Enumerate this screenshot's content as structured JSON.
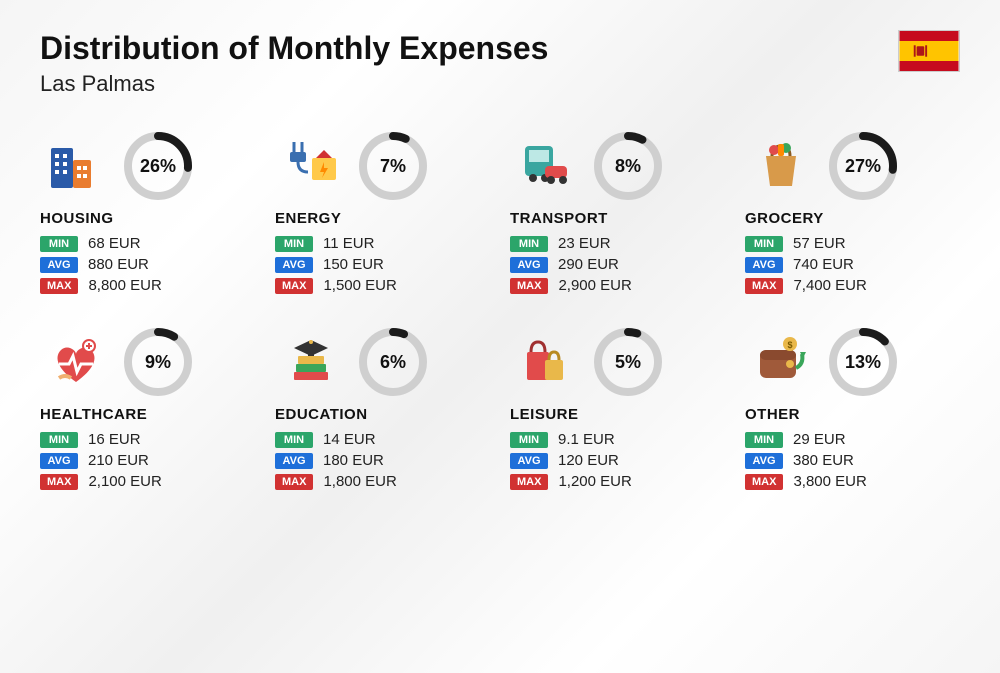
{
  "title": "Distribution of Monthly Expenses",
  "subtitle": "Las Palmas",
  "flag": {
    "top_color": "#c60b1e",
    "mid_color": "#ffc400",
    "bottom_color": "#c60b1e",
    "crest_color": "#ad1519"
  },
  "labels": {
    "min": "MIN",
    "avg": "AVG",
    "max": "MAX"
  },
  "colors": {
    "donut_track": "#cfcfcf",
    "donut_fill": "#1b1b1b",
    "tag_min": "#2ba56a",
    "tag_avg": "#1e6fd9",
    "tag_max": "#d13232",
    "text": "#111111"
  },
  "donut": {
    "size": 68,
    "stroke_width": 8
  },
  "categories": [
    {
      "key": "housing",
      "name": "HOUSING",
      "pct": 26,
      "pct_label": "26%",
      "min": "68 EUR",
      "avg": "880 EUR",
      "max": "8,800 EUR"
    },
    {
      "key": "energy",
      "name": "ENERGY",
      "pct": 7,
      "pct_label": "7%",
      "min": "11 EUR",
      "avg": "150 EUR",
      "max": "1,500 EUR"
    },
    {
      "key": "transport",
      "name": "TRANSPORT",
      "pct": 8,
      "pct_label": "8%",
      "min": "23 EUR",
      "avg": "290 EUR",
      "max": "2,900 EUR"
    },
    {
      "key": "grocery",
      "name": "GROCERY",
      "pct": 27,
      "pct_label": "27%",
      "min": "57 EUR",
      "avg": "740 EUR",
      "max": "7,400 EUR"
    },
    {
      "key": "healthcare",
      "name": "HEALTHCARE",
      "pct": 9,
      "pct_label": "9%",
      "min": "16 EUR",
      "avg": "210 EUR",
      "max": "2,100 EUR"
    },
    {
      "key": "education",
      "name": "EDUCATION",
      "pct": 6,
      "pct_label": "6%",
      "min": "14 EUR",
      "avg": "180 EUR",
      "max": "1,800 EUR"
    },
    {
      "key": "leisure",
      "name": "LEISURE",
      "pct": 5,
      "pct_label": "5%",
      "min": "9.1 EUR",
      "avg": "120 EUR",
      "max": "1,200 EUR"
    },
    {
      "key": "other",
      "name": "OTHER",
      "pct": 13,
      "pct_label": "13%",
      "min": "29 EUR",
      "avg": "380 EUR",
      "max": "3,800 EUR"
    }
  ]
}
